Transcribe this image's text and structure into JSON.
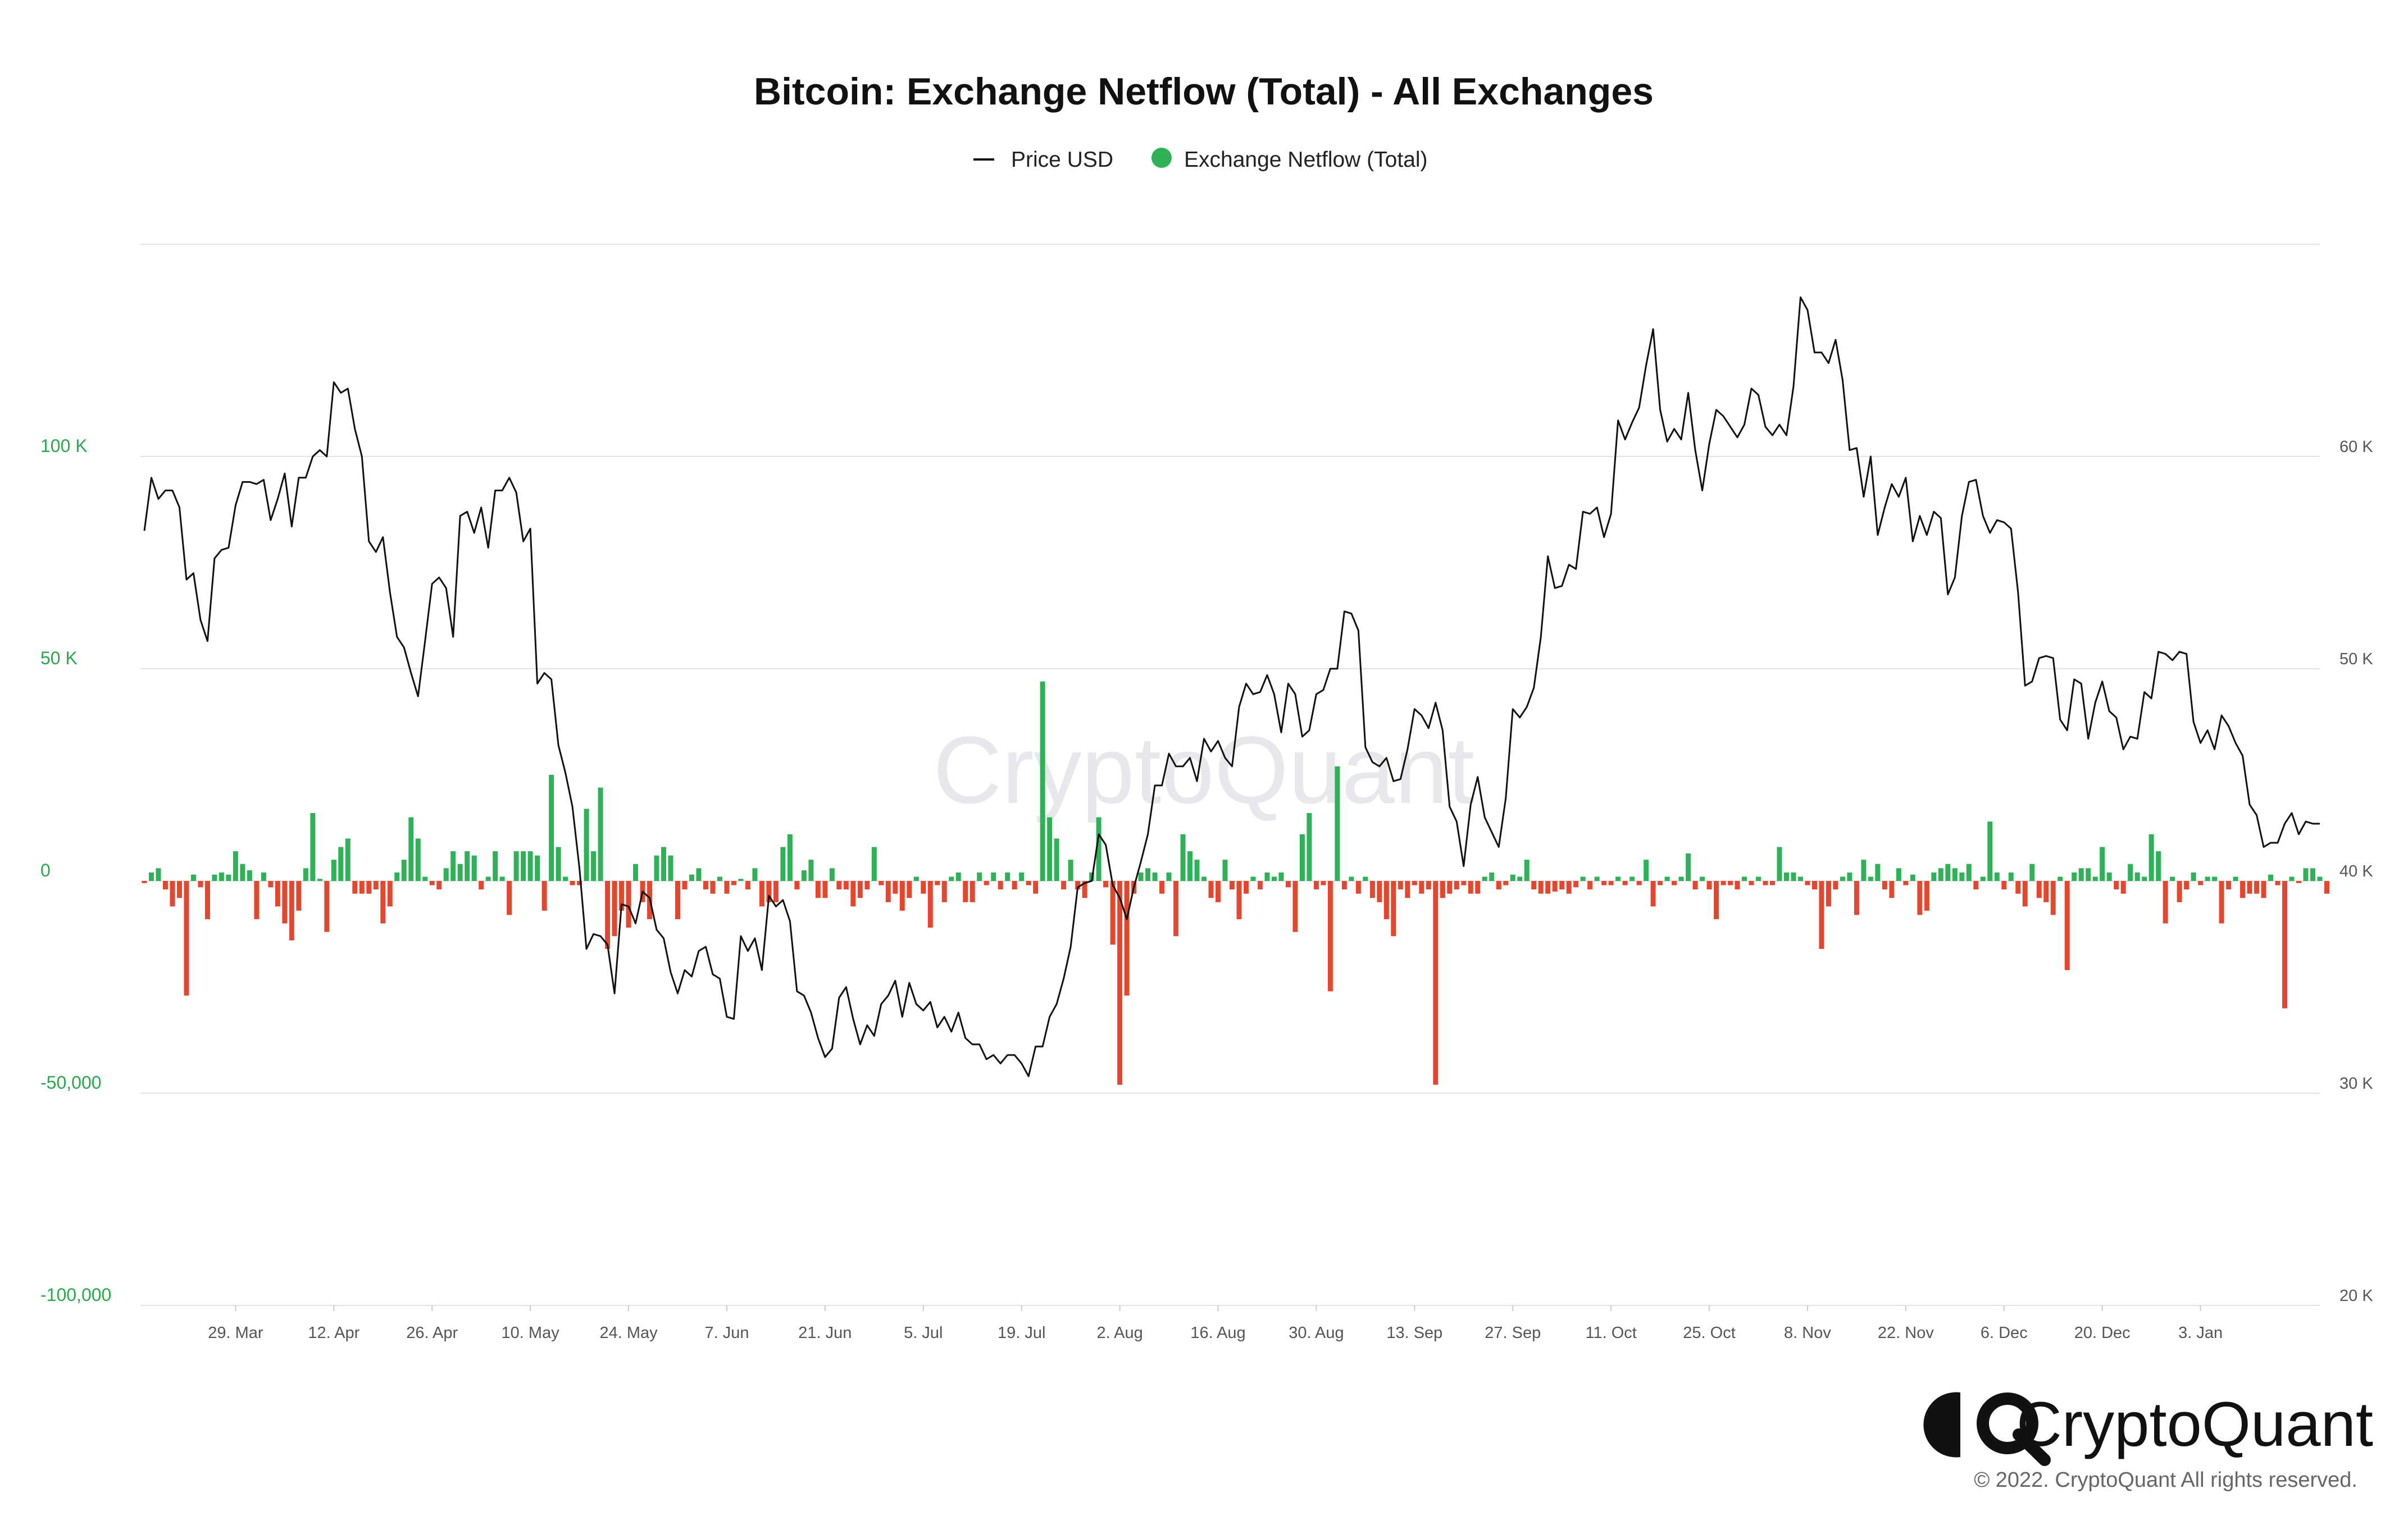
{
  "chart_data": {
    "type": "bar+line",
    "title": "Bitcoin: Exchange Netflow (Total) - All Exchanges",
    "legend": {
      "placement": "top-center",
      "entries": [
        {
          "name": "Price USD",
          "color": "#111111",
          "marker": "line"
        },
        {
          "name": "Exchange Netflow (Total)",
          "color": "#2eb157",
          "marker": "dot"
        }
      ]
    },
    "grid": "horizontal",
    "x_ticks": [
      "29. Mar",
      "12. Apr",
      "26. Apr",
      "10. May",
      "24. May",
      "7. Jun",
      "21. Jun",
      "5. Jul",
      "19. Jul",
      "2. Aug",
      "16. Aug",
      "30. Aug",
      "13. Sep",
      "27. Sep",
      "11. Oct",
      "25. Oct",
      "8. Nov",
      "22. Nov",
      "6. Dec",
      "20. Dec",
      "3. Jan"
    ],
    "y_left": {
      "ticks": [
        "100 K",
        "50 K",
        "0",
        "-50,000",
        "-100,000"
      ],
      "values": [
        100000,
        50000,
        0,
        -50000,
        -100000
      ],
      "range": [
        -100000,
        150000
      ],
      "color": "#2ba84a"
    },
    "y_right": {
      "ticks": [
        "60 K",
        "50 K",
        "40 K",
        "30 K",
        "20 K"
      ],
      "values": [
        60000,
        50000,
        40000,
        30000,
        20000
      ],
      "range": [
        20000,
        70000
      ]
    },
    "start_date": "2021-03-16",
    "series": [
      {
        "name": "Price USD",
        "type": "line",
        "axis": "right",
        "color": "#111111",
        "values": [
          56500,
          59000,
          58000,
          58400,
          58400,
          57600,
          54200,
          54500,
          52300,
          51300,
          55200,
          55600,
          55700,
          57700,
          58800,
          58800,
          58700,
          58900,
          57000,
          58000,
          59200,
          56700,
          59000,
          59000,
          60000,
          60300,
          60000,
          63500,
          63000,
          63200,
          61300,
          60000,
          56000,
          55500,
          56200,
          53600,
          51500,
          51000,
          49800,
          48700,
          51300,
          54000,
          54300,
          53800,
          51500,
          57200,
          57400,
          56400,
          57600,
          55700,
          58400,
          58400,
          59000,
          58300,
          56000,
          56600,
          49300,
          49800,
          49500,
          46400,
          45100,
          43500,
          40600,
          36800,
          37500,
          37400,
          37000,
          34700,
          38900,
          38800,
          38000,
          39500,
          39200,
          37700,
          37300,
          35700,
          34700,
          35800,
          35500,
          36700,
          36900,
          35600,
          35400,
          33600,
          33500,
          37400,
          36700,
          37300,
          35800,
          39300,
          38800,
          39100,
          38100,
          34800,
          34600,
          33800,
          32600,
          31700,
          32100,
          34500,
          35000,
          33500,
          32300,
          33200,
          32700,
          34200,
          34600,
          35300,
          33600,
          35200,
          34200,
          33900,
          34300,
          33100,
          33600,
          32900,
          33800,
          32600,
          32300,
          32300,
          31600,
          31800,
          31400,
          31800,
          31800,
          31400,
          30800,
          32200,
          32200,
          33600,
          34200,
          35400,
          36900,
          39700,
          39900,
          40000,
          42200,
          41700,
          39800,
          39200,
          38200,
          39700,
          40900,
          42200,
          44500,
          44500,
          46000,
          45400,
          45400,
          45800,
          44700,
          46700,
          46100,
          46600,
          45800,
          45400,
          48200,
          49300,
          48800,
          48900,
          49700,
          48800,
          47000,
          49300,
          48800,
          46800,
          47100,
          48800,
          49000,
          50000,
          50000,
          52700,
          52600,
          51800,
          46300,
          45600,
          45400,
          45800,
          44700,
          44800,
          46200,
          48100,
          47800,
          47200,
          48400,
          47100,
          43500,
          42800,
          40700,
          43600,
          44900,
          43000,
          42300,
          41600,
          43900,
          48100,
          47700,
          48200,
          49100,
          51500,
          55300,
          53800,
          53900,
          54900,
          54700,
          57400,
          57300,
          57600,
          56200,
          57300,
          61700,
          60800,
          61600,
          62300,
          64300,
          66000,
          62200,
          60700,
          61300,
          60800,
          63000,
          60300,
          58400,
          60600,
          62200,
          61900,
          61400,
          60900,
          61500,
          63200,
          62900,
          61400,
          61000,
          61500,
          61000,
          63300,
          67500,
          66900,
          64900,
          64900,
          64400,
          65500,
          63600,
          60300,
          60400,
          58100,
          60000,
          56300,
          57600,
          58700,
          58100,
          59000,
          56000,
          57200,
          56300,
          57400,
          57100,
          53500,
          54300,
          57200,
          58800,
          58900,
          57200,
          56400,
          57000,
          56900,
          56600,
          53600,
          49200,
          49400,
          50500,
          50600,
          50500,
          47600,
          47100,
          49500,
          49300,
          46700,
          48400,
          49400,
          48000,
          47700,
          46200,
          46800,
          46700,
          48900,
          48600,
          50800,
          50700,
          50400,
          50800,
          50700,
          47500,
          46500,
          47100,
          46200,
          47800,
          47300,
          46500,
          45900,
          43600,
          43100,
          41600,
          41800,
          41800,
          42700,
          43200,
          42200,
          42800,
          42700,
          42700
        ]
      },
      {
        "name": "Exchange Netflow (Total)",
        "type": "bar",
        "axis": "left",
        "positive_color": "#2eb157",
        "negative_color": "#e5462d",
        "values": [
          -500,
          2000,
          3000,
          -2000,
          -6000,
          -4000,
          -27000,
          1500,
          -1500,
          -9000,
          1500,
          2000,
          1500,
          7000,
          4000,
          2500,
          -9000,
          2000,
          -1500,
          -6000,
          -10000,
          -14000,
          -7000,
          3000,
          16000,
          500,
          -12000,
          5000,
          8000,
          10000,
          -3000,
          -3000,
          -3000,
          -2000,
          -10000,
          -6000,
          2000,
          5000,
          15000,
          10000,
          1000,
          -1000,
          -2000,
          3000,
          7000,
          4000,
          7000,
          6000,
          -2000,
          1000,
          7000,
          1000,
          -8000,
          7000,
          7000,
          7000,
          6000,
          -7000,
          25000,
          8000,
          1000,
          -1000,
          -1000,
          17000,
          7000,
          22000,
          -16000,
          -13000,
          -7000,
          -11000,
          4000,
          -5000,
          -9000,
          6000,
          8000,
          6000,
          -9000,
          -2000,
          1500,
          3000,
          -2000,
          -3000,
          1000,
          -3000,
          -1000,
          500,
          -2000,
          3000,
          -6000,
          -5000,
          -5000,
          8000,
          11000,
          -2000,
          2500,
          5000,
          -4000,
          -4000,
          3000,
          -2000,
          -2000,
          -6000,
          -4000,
          -2000,
          8000,
          -1000,
          -5000,
          -3000,
          -7000,
          -4000,
          1000,
          -3000,
          -11000,
          -1000,
          -5000,
          1000,
          2000,
          -5000,
          -5000,
          2000,
          -1000,
          2000,
          -2000,
          2000,
          -2000,
          2000,
          -1000,
          -3000,
          47000,
          15000,
          10000,
          -2000,
          5000,
          -2000,
          -4000,
          2000,
          15000,
          -1500,
          -15000,
          -48000,
          -27000,
          -3000,
          2000,
          3000,
          2000,
          -3000,
          2000,
          -13000,
          11000,
          7000,
          5000,
          1000,
          -4000,
          -5000,
          5000,
          -2000,
          -9000,
          -3000,
          1000,
          -2000,
          2000,
          1000,
          2000,
          -1500,
          -12000,
          11000,
          16000,
          -2000,
          -1000,
          -26000,
          27000,
          -2000,
          1000,
          -3000,
          1000,
          -4000,
          -5000,
          -9000,
          -13000,
          -2000,
          -4000,
          -1000,
          -3000,
          -2000,
          -48000,
          -4000,
          -3000,
          -2000,
          -1000,
          -3000,
          -3000,
          1000,
          2000,
          -2000,
          -1000,
          1500,
          1000,
          5000,
          -2000,
          -3000,
          -3000,
          -2500,
          -2000,
          -3000,
          -1500,
          1000,
          -2000,
          1000,
          -1000,
          -1000,
          1000,
          -1000,
          1000,
          -1000,
          5000,
          -6000,
          -1000,
          1000,
          -1000,
          1000,
          6500,
          -2000,
          1000,
          -2000,
          -9000,
          -1000,
          -1000,
          -2000,
          1000,
          -1000,
          1000,
          -1000,
          -1000,
          8000,
          2000,
          2000,
          1000,
          -1000,
          -2000,
          -16000,
          -6000,
          -2000,
          1000,
          2000,
          -8000,
          5000,
          1000,
          4000,
          -2000,
          -4000,
          3000,
          -1000,
          1500,
          -8000,
          -7000,
          2000,
          3000,
          4000,
          3000,
          2000,
          4000,
          -2000,
          1000,
          14000,
          2000,
          -2000,
          2000,
          -3000,
          -6000,
          4000,
          -4000,
          -5000,
          -8000,
          1000,
          -21000,
          2000,
          3000,
          3000,
          1000,
          8000,
          2000,
          -2000,
          -3000,
          4000,
          2000,
          1000,
          11000,
          7000,
          -10000,
          1000,
          -5000,
          -2000,
          2000,
          -1000,
          1000,
          1000,
          -10000,
          -2000,
          1000,
          -4000,
          -3000,
          -3000,
          -4000,
          1500,
          -1000,
          -30000,
          1000,
          -500,
          3000,
          3000,
          1000,
          -3000
        ]
      }
    ]
  },
  "watermark": "CryptoQuant",
  "brand": {
    "name": "CryptoQuant",
    "copyright": "© 2022. CryptoQuant All rights reserved."
  }
}
